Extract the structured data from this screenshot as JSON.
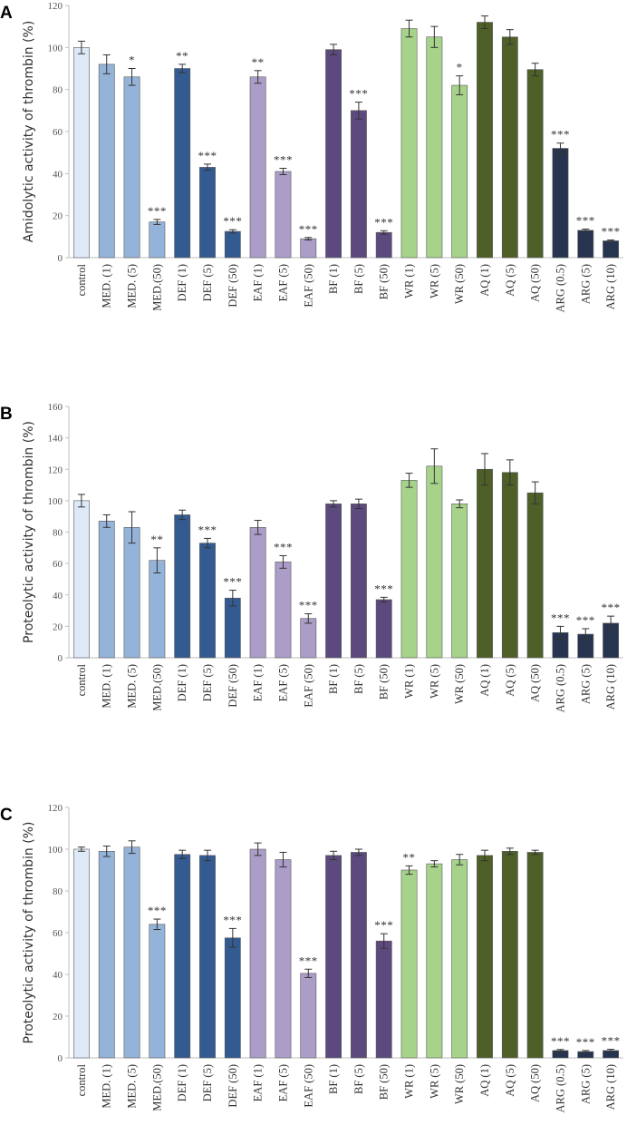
{
  "categories": [
    "control",
    "MED. (1)",
    "MED. (5)",
    "MED.(50)",
    "DEF (1)",
    "DEF (5)",
    "DEF (50)",
    "EAF (1)",
    "EAF (5)",
    "EAF (50)",
    "BF (1)",
    "BF (5)",
    "BF (50)",
    "WR (1)",
    "WR (5)",
    "WR (50)",
    "AQ (1)",
    "AQ (5)",
    "AQ (50)",
    "ARG (0.5)",
    "ARG (5)",
    "ARG (10)"
  ],
  "colors": [
    "#dde9f7",
    "#94b3d8",
    "#94b3d8",
    "#94b3d8",
    "#345b91",
    "#345b91",
    "#345b91",
    "#ab9cc8",
    "#ab9cc8",
    "#ab9cc8",
    "#5c4a7e",
    "#5c4a7e",
    "#5c4a7e",
    "#a6d28a",
    "#a6d28a",
    "#a6d28a",
    "#4e5f28",
    "#4e5f28",
    "#4e5f28",
    "#27344f",
    "#27344f",
    "#27344f"
  ],
  "chart_data": [
    {
      "type": "bar",
      "panel": "A",
      "ylabel": "Amidolytic activity of thrombin (%)",
      "ylim": [
        0,
        120
      ],
      "yticks": [
        0,
        20,
        40,
        60,
        80,
        100,
        120
      ],
      "values": [
        100,
        92,
        86,
        17,
        90,
        43,
        12.5,
        86,
        41,
        9,
        99,
        70,
        12,
        109,
        105,
        82,
        112,
        105,
        89.5,
        52,
        13,
        8
      ],
      "errors": [
        3,
        4.5,
        4,
        1.2,
        2,
        1.5,
        0.8,
        3,
        1.5,
        0.6,
        2.5,
        4,
        0.8,
        4,
        5,
        4.5,
        3,
        3.5,
        3,
        2.5,
        0.6,
        0.4
      ],
      "significance": [
        "",
        "",
        "*",
        "***",
        "**",
        "***",
        "***",
        "**",
        "***",
        "***",
        "",
        "***",
        "***",
        "",
        "",
        "*",
        "",
        "",
        "",
        "***",
        "***",
        "***"
      ]
    },
    {
      "type": "bar",
      "panel": "B",
      "ylabel": "Proteolytic activity of thrombin (%)",
      "ylim": [
        0,
        160
      ],
      "yticks": [
        0,
        20,
        40,
        60,
        80,
        100,
        120,
        140,
        160
      ],
      "values": [
        100,
        87,
        83,
        62,
        91,
        73,
        38,
        83,
        61,
        25,
        98,
        98,
        37,
        113,
        122,
        98,
        120,
        118,
        105,
        16,
        15,
        22
      ],
      "errors": [
        4,
        4,
        10,
        8,
        3,
        3,
        5,
        4.5,
        4,
        3,
        2,
        3,
        1.5,
        4.5,
        11,
        2.5,
        10,
        8,
        7,
        4,
        3.5,
        4.5
      ],
      "significance": [
        "",
        "",
        "",
        "**",
        "",
        "***",
        "***",
        "",
        "***",
        "***",
        "",
        "",
        "***",
        "",
        "",
        "",
        "",
        "",
        "",
        "***",
        "***",
        "***"
      ]
    },
    {
      "type": "bar",
      "panel": "C",
      "ylabel": "Proteolytic activity of thrombin (%)",
      "ylim": [
        0,
        120
      ],
      "yticks": [
        0,
        20,
        40,
        60,
        80,
        100,
        120
      ],
      "values": [
        100,
        99,
        101,
        64,
        97.5,
        97,
        57.5,
        100,
        95,
        40.5,
        97,
        98.5,
        56,
        90,
        93,
        95,
        97,
        99,
        98.5,
        3.5,
        3,
        3.5
      ],
      "errors": [
        1,
        2.5,
        3,
        2.5,
        2,
        2.5,
        4.5,
        3,
        3.5,
        2,
        2,
        1.5,
        3.5,
        2,
        1.5,
        2.5,
        2.5,
        1.5,
        1,
        0.5,
        0.5,
        0.6
      ],
      "significance": [
        "",
        "",
        "",
        "***",
        "",
        "",
        "***",
        "",
        "",
        "***",
        "",
        "",
        "***",
        "**",
        "",
        "",
        "",
        "",
        "",
        "***",
        "***",
        "***"
      ]
    }
  ]
}
